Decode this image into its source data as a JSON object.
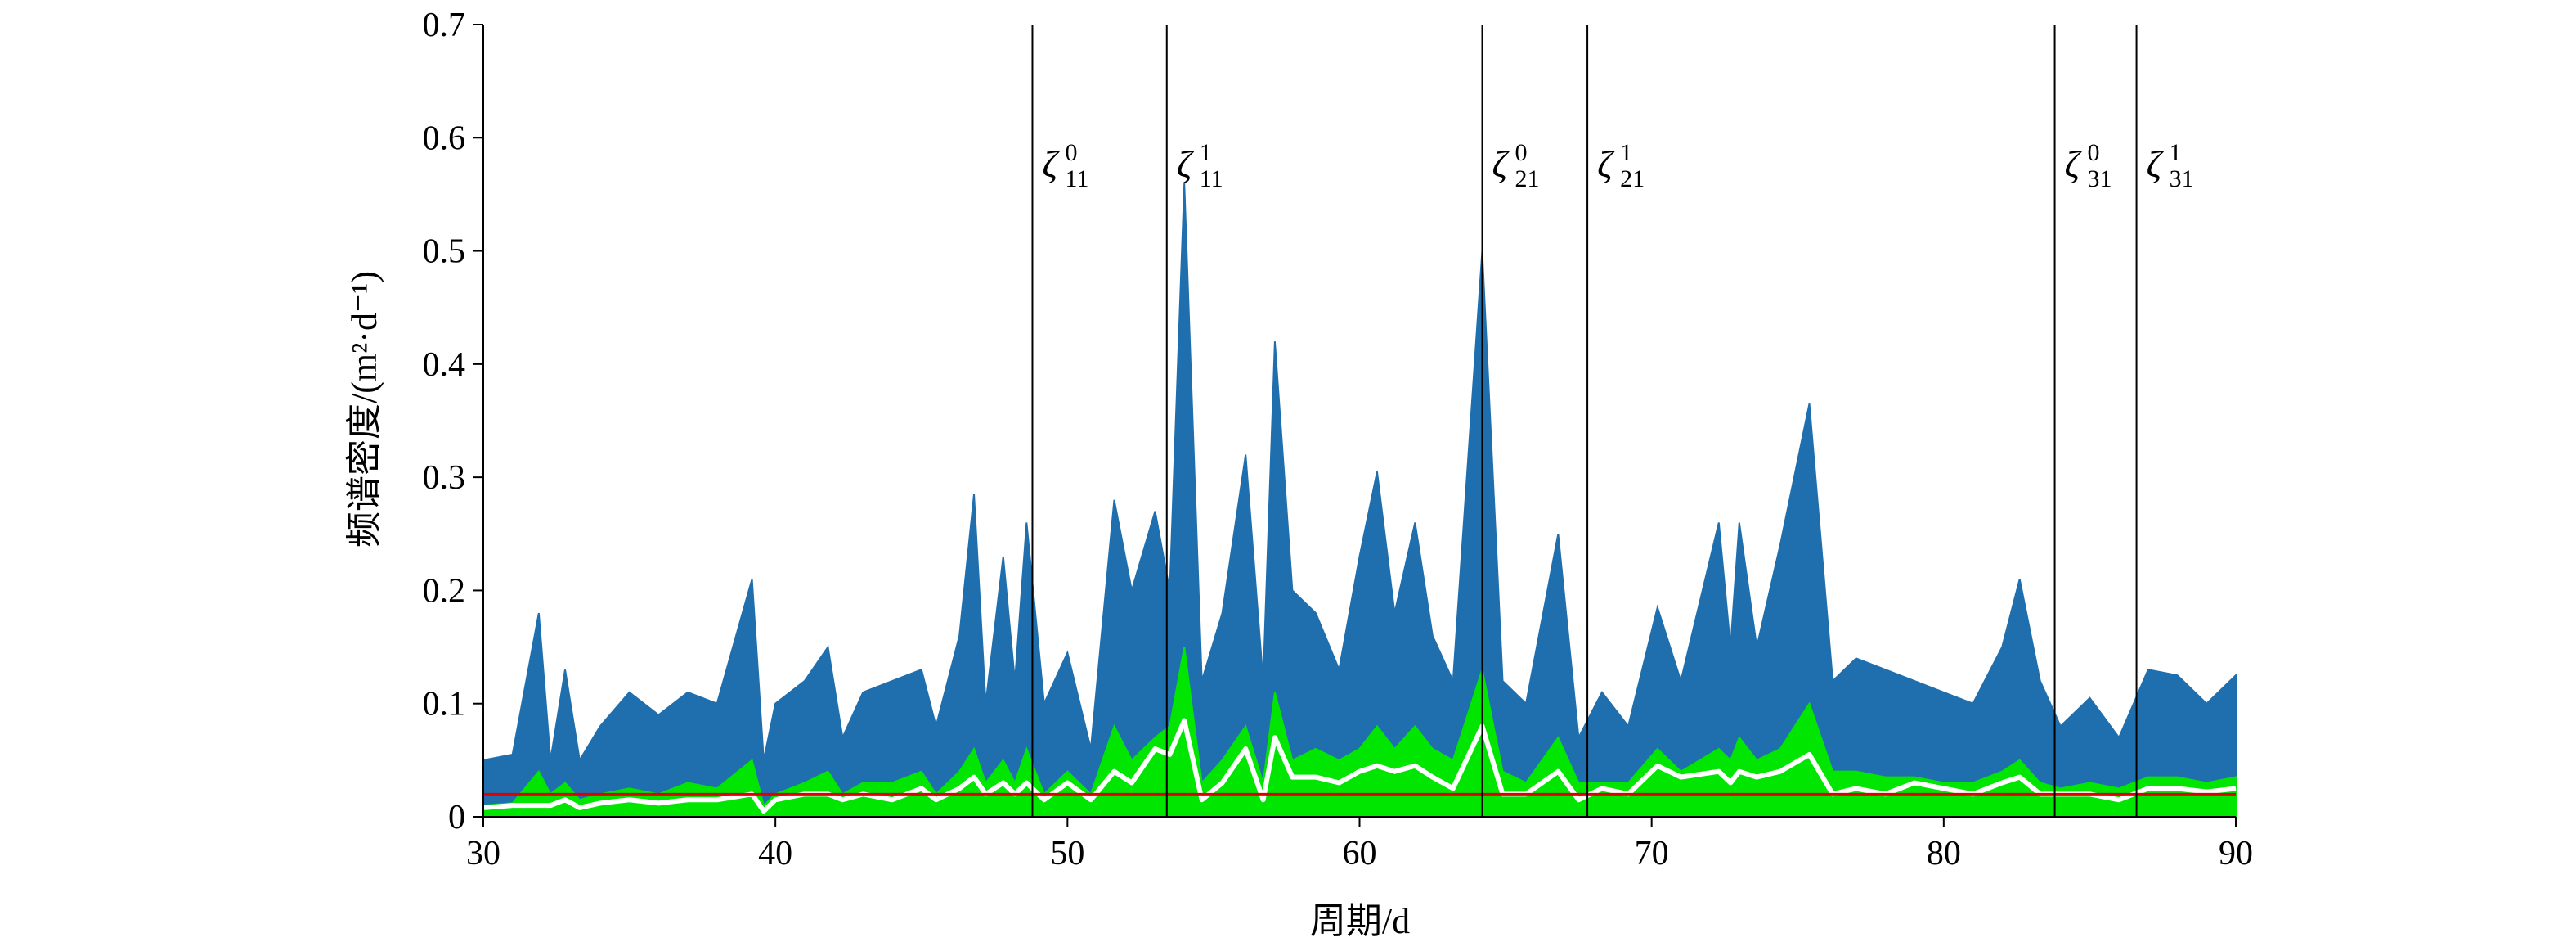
{
  "chart_data": {
    "type": "area",
    "x_label": "周期/d",
    "y_label": "频谱密度/(m²·d⁻¹)",
    "xlim": [
      30,
      90
    ],
    "xticks": [
      30,
      40,
      50,
      60,
      70,
      80,
      90
    ],
    "ylim": [
      0,
      0.7
    ],
    "yticks": [
      0,
      0.1,
      0.2,
      0.3,
      0.4,
      0.5,
      0.6,
      0.7
    ],
    "x": [
      30,
      31,
      31.9,
      32.3,
      32.8,
      33.3,
      34,
      35,
      36,
      37,
      38,
      39.2,
      39.6,
      40,
      41,
      41.8,
      42.3,
      43,
      44,
      45,
      45.5,
      46.3,
      46.8,
      47.2,
      47.8,
      48.2,
      48.6,
      49.2,
      50,
      50.8,
      51.6,
      52.2,
      53,
      53.5,
      54,
      54.6,
      55.3,
      56.1,
      56.7,
      57.1,
      57.7,
      58.5,
      59.3,
      60,
      60.6,
      61.2,
      61.9,
      62.5,
      63.2,
      64.2,
      64.9,
      65.7,
      66.8,
      67.5,
      68.3,
      69.2,
      70.2,
      71,
      72.3,
      72.7,
      73,
      73.6,
      74.4,
      75.4,
      76.2,
      77,
      78,
      79,
      80,
      81,
      82,
      82.6,
      83.3,
      84,
      85,
      86,
      87,
      88,
      89,
      90
    ],
    "series": [
      {
        "color": "#1f6fae",
        "style": "area",
        "values": [
          0.05,
          0.055,
          0.18,
          0.05,
          0.13,
          0.05,
          0.08,
          0.11,
          0.09,
          0.11,
          0.1,
          0.21,
          0.05,
          0.1,
          0.12,
          0.15,
          0.07,
          0.11,
          0.12,
          0.13,
          0.08,
          0.16,
          0.285,
          0.1,
          0.23,
          0.12,
          0.26,
          0.1,
          0.145,
          0.06,
          0.28,
          0.2,
          0.27,
          0.2,
          0.56,
          0.12,
          0.18,
          0.32,
          0.12,
          0.42,
          0.2,
          0.18,
          0.13,
          0.23,
          0.305,
          0.18,
          0.26,
          0.16,
          0.12,
          0.5,
          0.12,
          0.1,
          0.25,
          0.07,
          0.11,
          0.08,
          0.185,
          0.12,
          0.26,
          0.15,
          0.26,
          0.15,
          0.24,
          0.365,
          0.12,
          0.14,
          0.13,
          0.12,
          0.11,
          0.1,
          0.15,
          0.21,
          0.12,
          0.08,
          0.105,
          0.07,
          0.13,
          0.125,
          0.1,
          0.125
        ]
      },
      {
        "color": "#00e600",
        "style": "area",
        "values": [
          0.01,
          0.012,
          0.04,
          0.02,
          0.03,
          0.015,
          0.02,
          0.025,
          0.02,
          0.03,
          0.025,
          0.05,
          0.01,
          0.02,
          0.03,
          0.04,
          0.02,
          0.03,
          0.03,
          0.04,
          0.02,
          0.04,
          0.06,
          0.03,
          0.05,
          0.03,
          0.06,
          0.02,
          0.04,
          0.02,
          0.08,
          0.05,
          0.07,
          0.08,
          0.15,
          0.03,
          0.05,
          0.08,
          0.03,
          0.11,
          0.05,
          0.06,
          0.05,
          0.06,
          0.08,
          0.06,
          0.08,
          0.06,
          0.05,
          0.13,
          0.04,
          0.03,
          0.07,
          0.03,
          0.03,
          0.03,
          0.06,
          0.04,
          0.06,
          0.05,
          0.07,
          0.05,
          0.06,
          0.1,
          0.04,
          0.04,
          0.035,
          0.035,
          0.03,
          0.03,
          0.04,
          0.05,
          0.03,
          0.025,
          0.03,
          0.025,
          0.035,
          0.035,
          0.03,
          0.035
        ]
      },
      {
        "color": "#ffffff",
        "style": "line",
        "values": [
          0.008,
          0.01,
          0.01,
          0.01,
          0.015,
          0.008,
          0.012,
          0.015,
          0.012,
          0.015,
          0.015,
          0.02,
          0.005,
          0.015,
          0.02,
          0.02,
          0.015,
          0.02,
          0.015,
          0.025,
          0.015,
          0.025,
          0.035,
          0.02,
          0.03,
          0.02,
          0.03,
          0.015,
          0.03,
          0.015,
          0.04,
          0.03,
          0.06,
          0.055,
          0.085,
          0.015,
          0.03,
          0.06,
          0.015,
          0.07,
          0.035,
          0.035,
          0.03,
          0.04,
          0.045,
          0.04,
          0.045,
          0.035,
          0.025,
          0.08,
          0.02,
          0.02,
          0.04,
          0.015,
          0.025,
          0.02,
          0.045,
          0.035,
          0.04,
          0.03,
          0.04,
          0.035,
          0.04,
          0.055,
          0.02,
          0.025,
          0.02,
          0.03,
          0.025,
          0.02,
          0.03,
          0.035,
          0.02,
          0.02,
          0.02,
          0.015,
          0.025,
          0.025,
          0.022,
          0.025
        ]
      }
    ],
    "hline": {
      "value": 0.02,
      "color": "#e00000"
    },
    "vlines": [
      {
        "x": 48.8,
        "symbol": "ζ",
        "sup": "0",
        "sub": "11"
      },
      {
        "x": 53.4,
        "symbol": "ζ",
        "sup": "1",
        "sub": "11"
      },
      {
        "x": 64.2,
        "symbol": "ζ",
        "sup": "0",
        "sub": "21"
      },
      {
        "x": 67.8,
        "symbol": "ζ",
        "sup": "1",
        "sub": "21"
      },
      {
        "x": 83.8,
        "symbol": "ζ",
        "sup": "0",
        "sub": "31"
      },
      {
        "x": 86.6,
        "symbol": "ζ",
        "sup": "1",
        "sub": "31"
      }
    ],
    "vline_label_y": 0.58
  }
}
